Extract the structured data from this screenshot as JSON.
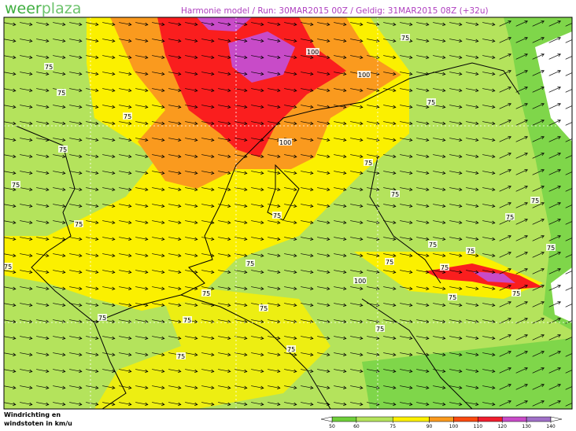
{
  "header": {
    "logo_left": "weer",
    "logo_right": "plaza",
    "title": "Harmonie model / Run: 30MAR2015 00Z / Geldig: 31MAR2015 08Z (+32u)"
  },
  "footer": {
    "line1": "Windrichting en",
    "line2": "windstoten in km/u"
  },
  "legend": {
    "ticks": [
      50,
      60,
      75,
      90,
      100,
      110,
      120,
      130,
      140
    ],
    "colors": [
      "#6fcf3a",
      "#b4e35c",
      "#fbf000",
      "#fa9a1e",
      "#fa4a10",
      "#f01e2e",
      "#c84bc8",
      "#a070c8"
    ]
  },
  "contour_labels": [
    "75",
    "75",
    "75",
    "75",
    "75",
    "75",
    "75",
    "75",
    "75",
    "100",
    "100",
    "100",
    "75",
    "75",
    "75",
    "75",
    "75",
    "75",
    "75",
    "75",
    "75",
    "100",
    "75",
    "75",
    "75",
    "75",
    "75",
    "75",
    "75",
    "75",
    "75",
    "75",
    "75"
  ]
}
